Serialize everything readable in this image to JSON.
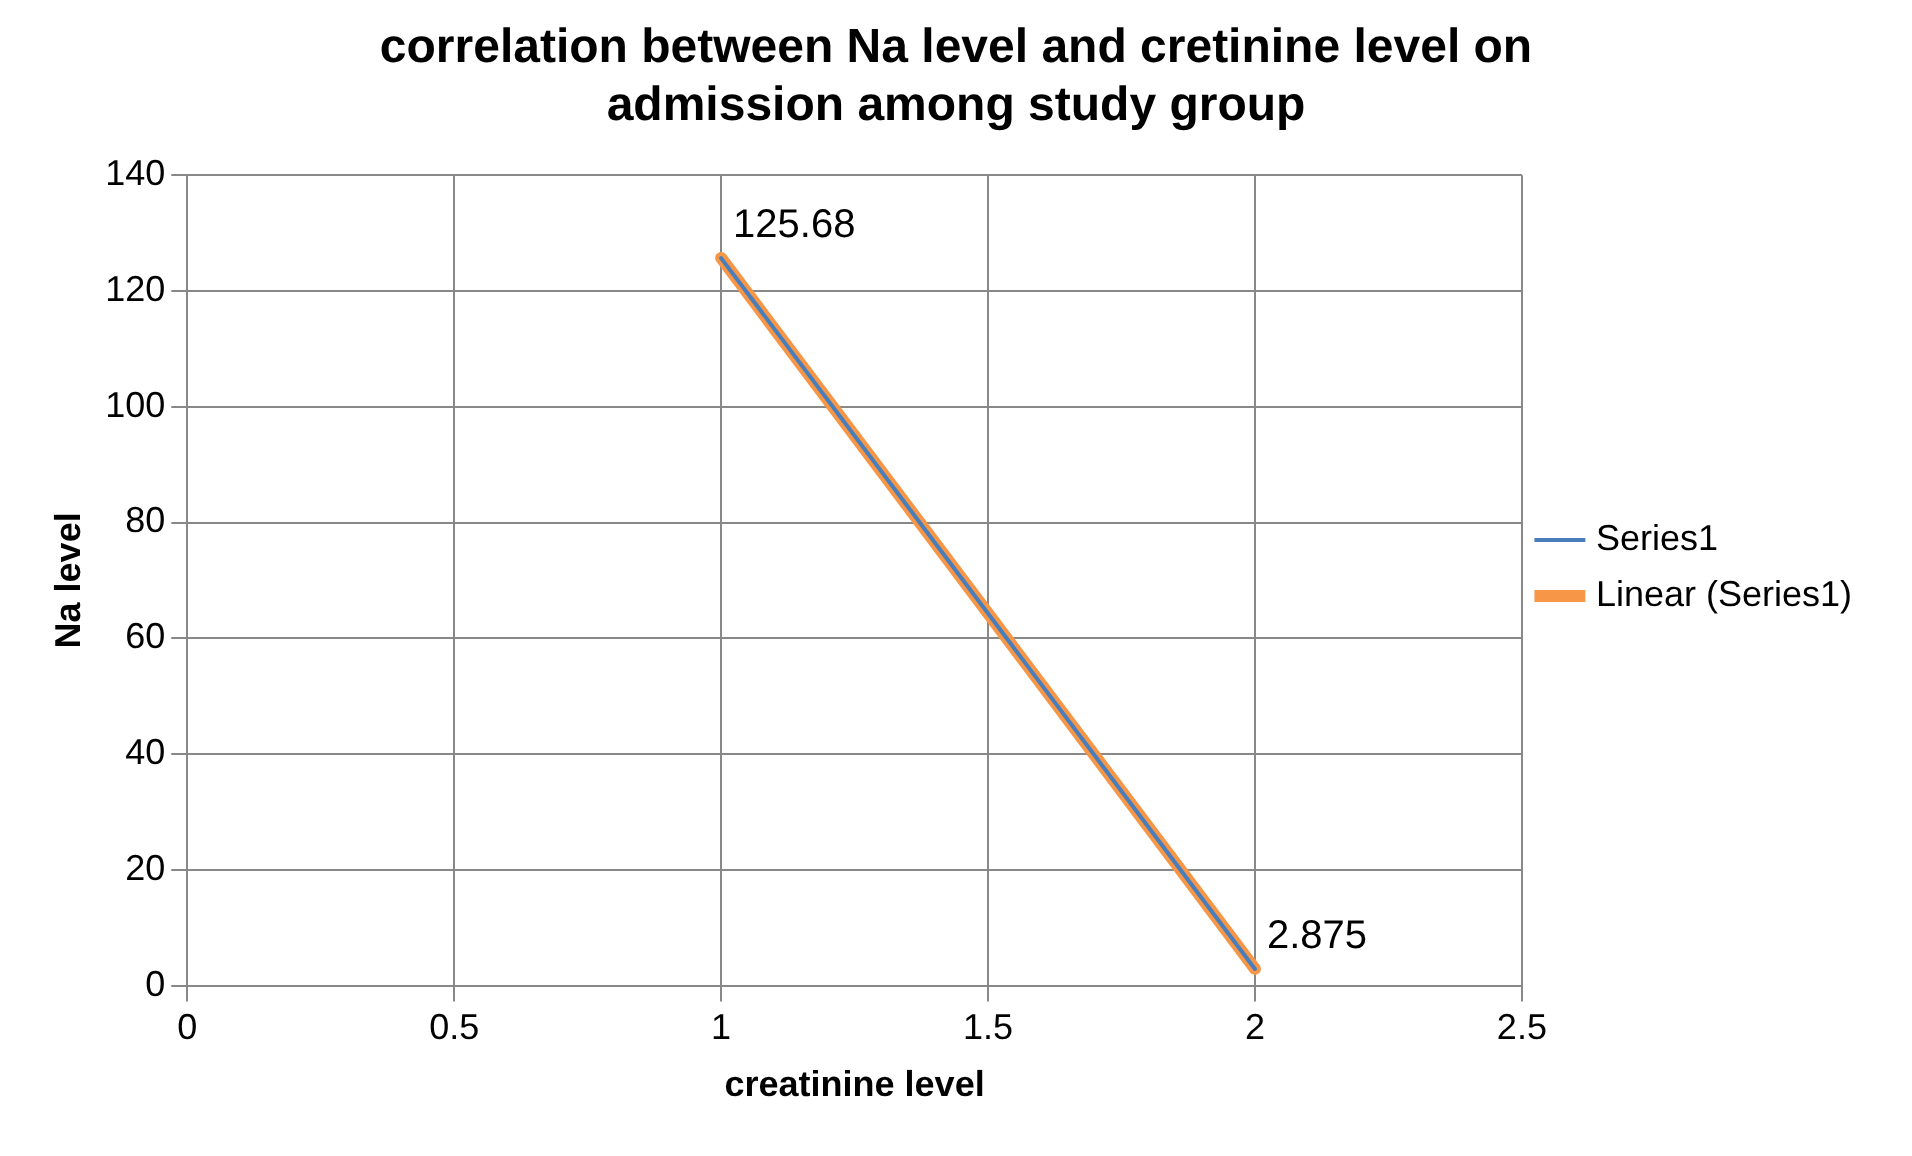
{
  "chart_data": {
    "type": "line",
    "title": "correlation between Na level and cretinine level on admission among study group",
    "xlabel": "creatinine level",
    "ylabel": "Na level",
    "xlim": [
      0,
      2.5
    ],
    "xticks": [
      0,
      0.5,
      1,
      1.5,
      2,
      2.5
    ],
    "ylim": [
      0,
      140
    ],
    "yticks": [
      0,
      20,
      40,
      60,
      80,
      100,
      120,
      140
    ],
    "grid": true,
    "legend": "right",
    "marker": "none",
    "line_style": "solid",
    "x": [
      1,
      2
    ],
    "series": [
      {
        "name": "Series1",
        "color": "#4a7ebb",
        "values": [
          125.68,
          2.875
        ],
        "value_labels": [
          "125.68",
          "2.875"
        ]
      },
      {
        "name": "Linear (Series1)",
        "type": "line",
        "color": "#f79646",
        "values": [
          125.7,
          2.9
        ]
      }
    ]
  }
}
